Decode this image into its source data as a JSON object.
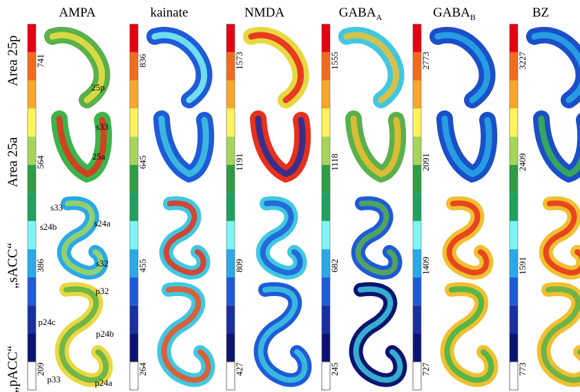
{
  "row_labels": [
    "Area 25p",
    "Area 25a",
    "„sACC“",
    "„pACC“"
  ],
  "columns": [
    {
      "title": "AMPA",
      "scale_labels": [
        741,
        564,
        386,
        209
      ]
    },
    {
      "title": "kainate",
      "scale_labels": [
        836,
        645,
        455,
        264
      ]
    },
    {
      "title": "NMDA",
      "scale_labels": [
        1573,
        1191,
        809,
        427
      ]
    },
    {
      "title": "GABA",
      "subscript": "A",
      "scale_labels": [
        1555,
        1118,
        682,
        245
      ]
    },
    {
      "title": "GABA",
      "subscript": "B",
      "scale_labels": [
        2773,
        2091,
        1409,
        727
      ]
    },
    {
      "title": "BZ",
      "scale_labels": [
        3227,
        2409,
        1591,
        773
      ]
    }
  ],
  "region_labels": [
    "25p",
    "s33",
    "25a",
    "s33",
    "s24b",
    "s24a",
    "s32",
    "p32",
    "p24c",
    "p24b",
    "p33",
    "p24a"
  ]
}
